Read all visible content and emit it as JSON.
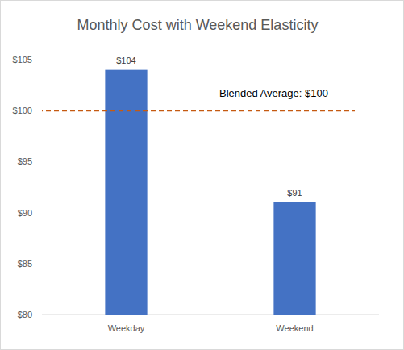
{
  "chart_data": {
    "type": "bar",
    "title": "Monthly Cost with Weekend Elasticity",
    "categories": [
      "Weekday",
      "Weekend"
    ],
    "values": [
      104,
      91
    ],
    "value_labels": [
      "$104",
      "$91"
    ],
    "data_labels": true,
    "color": "#4472c4",
    "ylim": [
      80,
      105
    ],
    "yticks": [
      {
        "value": 80,
        "label": "$80"
      },
      {
        "value": 85,
        "label": "$85"
      },
      {
        "value": 90,
        "label": "$90"
      },
      {
        "value": 95,
        "label": "$95"
      },
      {
        "value": 100,
        "label": "$100"
      },
      {
        "value": 105,
        "label": "$105"
      }
    ],
    "grid": false,
    "reference_line": {
      "value": 100,
      "label": "Blended Average: $100",
      "color": "#c55a11",
      "line_style": "dashed"
    }
  }
}
